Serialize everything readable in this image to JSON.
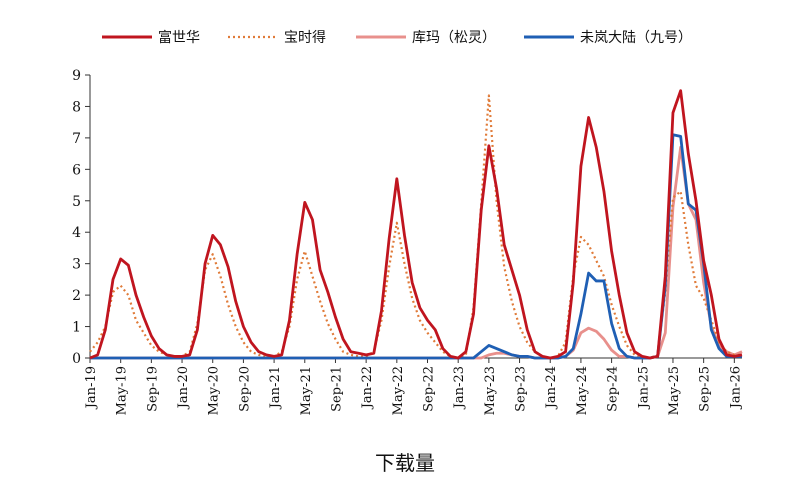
{
  "chart_data": {
    "type": "line",
    "title": "",
    "xlabel": "下载量",
    "ylabel": "",
    "ylim": [
      0,
      9
    ],
    "yticks": [
      0,
      1,
      2,
      3,
      4,
      5,
      6,
      7,
      8,
      9
    ],
    "grid": false,
    "legend_position": "top",
    "x_tick_labels": [
      "Jan-19",
      "May-19",
      "Sep-19",
      "Jan-20",
      "May-20",
      "Sep-20",
      "Jan-21",
      "May-21",
      "Sep-21",
      "Jan-22",
      "May-22",
      "Sep-22",
      "Jan-23",
      "May-23",
      "Sep-23",
      "Jan-24",
      "May-24",
      "Sep-24",
      "Jan-25",
      "May-25",
      "Sep-25",
      "Jan-26"
    ],
    "x_start": "2019-01",
    "x_end": "2026-01",
    "series": [
      {
        "name": "富世华",
        "color": "#c0151f",
        "style": "solid",
        "values": [
          0.0,
          0.1,
          0.9,
          2.5,
          3.15,
          2.95,
          2.0,
          1.3,
          0.7,
          0.3,
          0.1,
          0.05,
          0.05,
          0.1,
          0.9,
          3.0,
          3.9,
          3.6,
          2.9,
          1.8,
          1.0,
          0.5,
          0.2,
          0.1,
          0.05,
          0.1,
          1.2,
          3.3,
          4.95,
          4.4,
          2.8,
          2.1,
          1.3,
          0.6,
          0.2,
          0.15,
          0.1,
          0.15,
          1.5,
          3.8,
          5.7,
          3.9,
          2.4,
          1.6,
          1.2,
          0.9,
          0.3,
          0.05,
          0.0,
          0.2,
          1.4,
          4.7,
          6.75,
          5.4,
          3.6,
          2.8,
          2.0,
          0.9,
          0.2,
          0.05,
          0.0,
          0.05,
          0.2,
          2.4,
          6.1,
          7.65,
          6.7,
          5.3,
          3.4,
          2.0,
          0.8,
          0.2,
          0.05,
          0.0,
          0.05,
          2.6,
          7.8,
          8.5,
          6.5,
          5.0,
          3.1,
          2.0,
          0.6,
          0.1,
          0.05,
          0.1
        ]
      },
      {
        "name": "宝时得",
        "color": "#e07b39",
        "style": "dotted",
        "values": [
          0.2,
          0.5,
          1.0,
          2.1,
          2.3,
          2.0,
          1.2,
          0.8,
          0.4,
          0.2,
          0.1,
          0.05,
          0.05,
          0.2,
          1.1,
          2.8,
          3.3,
          2.6,
          1.7,
          1.0,
          0.5,
          0.2,
          0.1,
          0.05,
          0.05,
          0.2,
          1.0,
          2.5,
          3.4,
          2.6,
          1.8,
          1.1,
          0.6,
          0.2,
          0.1,
          0.05,
          0.05,
          0.2,
          1.2,
          2.9,
          4.3,
          3.0,
          1.9,
          1.2,
          0.8,
          0.5,
          0.2,
          0.05,
          0.0,
          0.1,
          1.6,
          4.9,
          8.35,
          5.0,
          2.9,
          1.8,
          1.0,
          0.5,
          0.2,
          0.05,
          0.0,
          0.05,
          0.5,
          2.6,
          3.85,
          3.6,
          3.1,
          2.6,
          1.7,
          1.0,
          0.4,
          0.1,
          0.05,
          0.0,
          0.1,
          2.1,
          5.1,
          5.3,
          3.6,
          2.3,
          1.9,
          1.2,
          0.5,
          0.2,
          0.1,
          0.1
        ]
      },
      {
        "name": "库玛（松灵）",
        "color": "#e8908c",
        "style": "solid",
        "values": [
          0,
          0,
          0,
          0,
          0,
          0,
          0,
          0,
          0,
          0,
          0,
          0,
          0,
          0,
          0,
          0,
          0,
          0,
          0,
          0,
          0,
          0,
          0,
          0,
          0,
          0,
          0,
          0,
          0,
          0,
          0,
          0,
          0,
          0,
          0,
          0,
          0,
          0,
          0,
          0,
          0,
          0,
          0,
          0,
          0,
          0,
          0,
          0,
          0,
          0,
          0,
          0,
          0.1,
          0.15,
          0.15,
          0.1,
          0.05,
          0.05,
          0,
          0,
          0,
          0,
          0.05,
          0.25,
          0.8,
          0.95,
          0.85,
          0.6,
          0.25,
          0.05,
          0.05,
          0,
          0,
          0,
          0.05,
          0.8,
          4.8,
          6.7,
          4.9,
          4.4,
          2.4,
          1.0,
          0.4,
          0.2,
          0.1,
          0.2
        ]
      },
      {
        "name": "未岚大陆（九号）",
        "color": "#1f5fb4",
        "style": "solid",
        "values": [
          0,
          0,
          0,
          0,
          0,
          0,
          0,
          0,
          0,
          0,
          0,
          0,
          0,
          0,
          0,
          0,
          0,
          0,
          0,
          0,
          0,
          0,
          0,
          0,
          0,
          0,
          0,
          0,
          0,
          0,
          0,
          0,
          0,
          0,
          0,
          0,
          0,
          0,
          0,
          0,
          0,
          0,
          0,
          0,
          0,
          0,
          0,
          0,
          0,
          0,
          0,
          0.2,
          0.4,
          0.3,
          0.2,
          0.1,
          0.05,
          0.05,
          0.0,
          0.0,
          0.0,
          0.0,
          0.05,
          0.3,
          1.4,
          2.7,
          2.45,
          2.45,
          1.1,
          0.3,
          0.05,
          0.0,
          0.0,
          0.0,
          0.05,
          2.3,
          7.1,
          7.05,
          4.9,
          4.7,
          3.0,
          0.9,
          0.3,
          0.05,
          0.05,
          0.05
        ]
      }
    ]
  }
}
